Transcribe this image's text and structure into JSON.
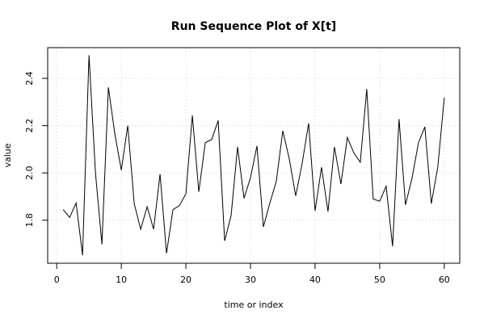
{
  "chart_data": {
    "type": "line",
    "title": "Run Sequence Plot of X[t]",
    "xlabel": "time or index",
    "ylabel": "value",
    "xlim": [
      -1.4,
      62.4
    ],
    "ylim": [
      1.618,
      2.53
    ],
    "xticks": [
      0,
      10,
      20,
      30,
      40,
      50,
      60
    ],
    "yticks": [
      1.8,
      2.0,
      2.2,
      2.4
    ],
    "ytick_labels": [
      "1.8",
      "2.0",
      "2.2",
      "2.4"
    ],
    "grid": true,
    "series": [
      {
        "x": [
          1,
          2,
          3,
          4,
          5,
          6,
          7,
          8,
          9,
          10,
          11,
          12,
          13,
          14,
          15,
          16,
          17,
          18,
          19,
          20,
          21,
          22,
          23,
          24,
          25,
          26,
          27,
          28,
          29,
          30,
          31,
          32,
          33,
          34,
          35,
          36,
          37,
          38,
          39,
          40,
          41,
          42,
          43,
          44,
          45,
          46,
          47,
          48,
          49,
          50,
          51,
          52,
          53,
          54,
          55,
          56,
          57,
          58,
          59,
          60
        ],
        "values": [
          1.845,
          1.812,
          1.873,
          1.652,
          2.498,
          2.0,
          1.698,
          2.362,
          2.165,
          2.012,
          2.2,
          1.87,
          1.762,
          1.857,
          1.762,
          1.995,
          1.66,
          1.845,
          1.862,
          1.912,
          2.243,
          1.92,
          2.128,
          2.142,
          2.222,
          1.713,
          1.82,
          2.11,
          1.893,
          1.98,
          2.114,
          1.772,
          1.873,
          1.965,
          2.178,
          2.06,
          1.903,
          2.04,
          2.21,
          1.84,
          2.024,
          1.837,
          2.11,
          1.953,
          2.15,
          2.085,
          2.045,
          2.355,
          1.89,
          1.88,
          1.944,
          1.69,
          2.228,
          1.865,
          1.977,
          2.127,
          2.195,
          1.87,
          2.025,
          2.318
        ]
      }
    ]
  }
}
